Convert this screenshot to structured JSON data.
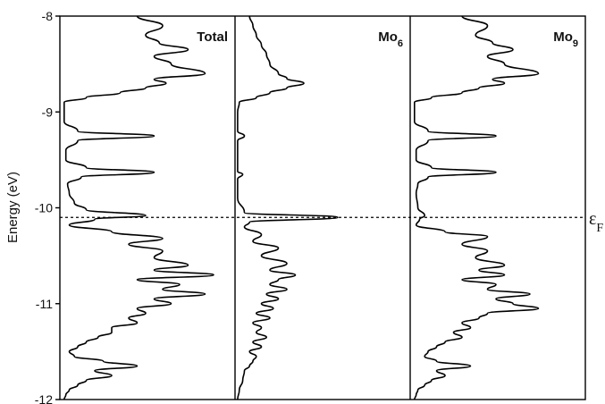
{
  "chart_data": {
    "type": "line",
    "orientation": "energy-vertical",
    "ylabel": "Energy (eV)",
    "ylim": [
      -12,
      -8
    ],
    "yticks": [
      -8,
      -9,
      -10,
      -11,
      -12
    ],
    "yticks_labels": [
      "-8",
      "-9",
      "-10",
      "-11",
      "-12"
    ],
    "fermi_level": {
      "value": -10.1,
      "label_main": "ε",
      "label_sub": "F"
    },
    "panels": [
      {
        "title": "Total",
        "title_sub": "",
        "series": {
          "energy": [
            -8.0,
            -8.1,
            -8.2,
            -8.28,
            -8.35,
            -8.42,
            -8.5,
            -8.6,
            -8.66,
            -8.7,
            -8.75,
            -8.8,
            -8.85,
            -8.9,
            -9.0,
            -9.1,
            -9.2,
            -9.25,
            -9.3,
            -9.4,
            -9.5,
            -9.58,
            -9.63,
            -9.68,
            -9.75,
            -9.85,
            -9.95,
            -10.02,
            -10.08,
            -10.12,
            -10.18,
            -10.25,
            -10.32,
            -10.38,
            -10.45,
            -10.52,
            -10.6,
            -10.65,
            -10.7,
            -10.75,
            -10.8,
            -10.85,
            -10.9,
            -10.95,
            -11.0,
            -11.05,
            -11.1,
            -11.15,
            -11.2,
            -11.25,
            -11.3,
            -11.35,
            -11.4,
            -11.45,
            -11.5,
            -11.55,
            -11.6,
            -11.65,
            -11.7,
            -11.75,
            -11.8,
            -11.85,
            -11.9,
            -11.95,
            -12.0
          ],
          "dos": [
            0.45,
            0.6,
            0.5,
            0.58,
            0.75,
            0.55,
            0.65,
            0.85,
            0.55,
            0.62,
            0.5,
            0.35,
            0.15,
            0.02,
            0.02,
            0.02,
            0.1,
            0.55,
            0.1,
            0.03,
            0.03,
            0.15,
            0.55,
            0.12,
            0.04,
            0.05,
            0.08,
            0.15,
            0.5,
            0.2,
            0.05,
            0.3,
            0.6,
            0.4,
            0.6,
            0.55,
            0.75,
            0.55,
            0.9,
            0.45,
            0.7,
            0.6,
            0.85,
            0.55,
            0.65,
            0.45,
            0.5,
            0.4,
            0.45,
            0.3,
            0.3,
            0.22,
            0.15,
            0.1,
            0.05,
            0.08,
            0.25,
            0.45,
            0.2,
            0.3,
            0.15,
            0.1,
            0.05,
            0.03,
            0.02
          ]
        }
      },
      {
        "title": "Mo",
        "title_sub": "6",
        "series": {
          "energy": [
            -8.0,
            -8.1,
            -8.2,
            -8.3,
            -8.4,
            -8.5,
            -8.6,
            -8.65,
            -8.7,
            -8.75,
            -8.8,
            -8.85,
            -8.9,
            -9.0,
            -9.2,
            -9.25,
            -9.3,
            -9.5,
            -9.62,
            -9.65,
            -9.7,
            -9.9,
            -10.05,
            -10.1,
            -10.15,
            -10.2,
            -10.28,
            -10.35,
            -10.42,
            -10.5,
            -10.58,
            -10.65,
            -10.7,
            -10.75,
            -10.8,
            -10.85,
            -10.9,
            -10.95,
            -11.0,
            -11.05,
            -11.1,
            -11.15,
            -11.2,
            -11.25,
            -11.3,
            -11.35,
            -11.4,
            -11.45,
            -11.5,
            -11.55,
            -11.6,
            -11.65,
            -11.7,
            -11.8,
            -11.9,
            -12.0
          ],
          "dos": [
            0.08,
            0.1,
            0.12,
            0.15,
            0.18,
            0.2,
            0.25,
            0.3,
            0.4,
            0.3,
            0.2,
            0.12,
            0.02,
            0.01,
            0.01,
            0.05,
            0.01,
            0.01,
            0.01,
            0.04,
            0.01,
            0.01,
            0.05,
            0.6,
            0.08,
            0.05,
            0.15,
            0.1,
            0.25,
            0.15,
            0.3,
            0.2,
            0.35,
            0.25,
            0.2,
            0.3,
            0.18,
            0.25,
            0.15,
            0.22,
            0.12,
            0.2,
            0.1,
            0.15,
            0.12,
            0.18,
            0.1,
            0.15,
            0.08,
            0.12,
            0.1,
            0.08,
            0.05,
            0.04,
            0.02,
            0.01
          ]
        }
      },
      {
        "title": "Mo",
        "title_sub": "9",
        "series": {
          "energy": [
            -8.0,
            -8.1,
            -8.2,
            -8.28,
            -8.35,
            -8.42,
            -8.5,
            -8.6,
            -8.66,
            -8.7,
            -8.75,
            -8.8,
            -8.85,
            -8.9,
            -9.0,
            -9.1,
            -9.2,
            -9.25,
            -9.3,
            -9.4,
            -9.5,
            -9.58,
            -9.63,
            -9.68,
            -9.75,
            -9.85,
            -10.0,
            -10.08,
            -10.12,
            -10.18,
            -10.25,
            -10.3,
            -10.38,
            -10.45,
            -10.52,
            -10.6,
            -10.65,
            -10.7,
            -10.75,
            -10.8,
            -10.85,
            -10.9,
            -10.95,
            -11.0,
            -11.05,
            -11.1,
            -11.15,
            -11.2,
            -11.25,
            -11.3,
            -11.35,
            -11.4,
            -11.45,
            -11.5,
            -11.55,
            -11.6,
            -11.65,
            -11.7,
            -11.75,
            -11.8,
            -11.85,
            -11.9,
            -11.95,
            -12.0
          ],
          "dos": [
            0.3,
            0.45,
            0.38,
            0.48,
            0.6,
            0.45,
            0.55,
            0.75,
            0.48,
            0.55,
            0.4,
            0.3,
            0.12,
            0.02,
            0.02,
            0.02,
            0.1,
            0.5,
            0.1,
            0.03,
            0.03,
            0.12,
            0.5,
            0.1,
            0.04,
            0.03,
            0.04,
            0.08,
            0.05,
            0.03,
            0.2,
            0.45,
            0.3,
            0.45,
            0.38,
            0.55,
            0.4,
            0.55,
            0.3,
            0.5,
            0.45,
            0.7,
            0.5,
            0.6,
            0.75,
            0.45,
            0.4,
            0.3,
            0.35,
            0.25,
            0.3,
            0.2,
            0.15,
            0.1,
            0.08,
            0.15,
            0.35,
            0.15,
            0.2,
            0.12,
            0.08,
            0.04,
            0.03,
            0.02
          ]
        }
      }
    ]
  }
}
